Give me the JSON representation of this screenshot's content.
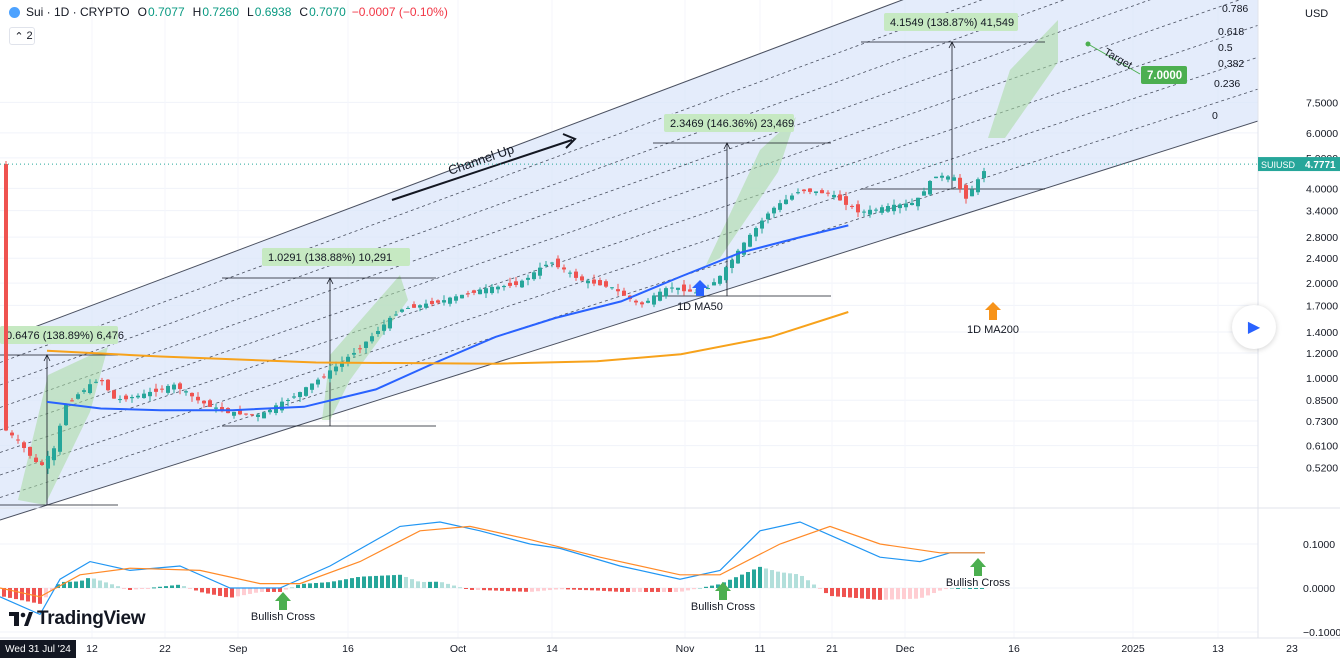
{
  "header": {
    "symbol": "Sui · 1D · CRYPTO",
    "o_label": "O",
    "o_value": "0.7077",
    "h_label": "H",
    "h_value": "0.7260",
    "l_label": "L",
    "l_value": "0.6938",
    "c_label": "C",
    "c_value": "0.7070",
    "change": "−0.0007 (−0.10%)",
    "indicator_count": "2"
  },
  "price_axis": {
    "currency": "USD",
    "labels": [
      "7.5000",
      "6.0000",
      "5.0000",
      "4.0000",
      "3.4000",
      "2.8000",
      "2.4000",
      "2.0000",
      "1.7000",
      "1.4000",
      "1.2000",
      "1.0000",
      "0.8500",
      "0.7300",
      "0.6100",
      "0.5200"
    ],
    "symbol_tag": "SUIUSD",
    "current_price": "4.7771"
  },
  "macd_axis": {
    "labels": [
      "0.1000",
      "0.0000",
      "−0.1000"
    ]
  },
  "time_axis": {
    "current_date": "Wed 31 Jul '24",
    "labels": [
      "12",
      "22",
      "Sep",
      "16",
      "Oct",
      "14",
      "Nov",
      "11",
      "21",
      "Dec",
      "16",
      "2025",
      "13",
      "23"
    ]
  },
  "fib_levels": [
    "0.786",
    "0.618",
    "0.5",
    "0.382",
    "0.236",
    "0"
  ],
  "annotations": {
    "channel": "Channel Up",
    "target_word": "Target",
    "target_value": "7.0000",
    "ma50": "1D MA50",
    "ma200": "1D MA200",
    "bullish_cross": "Bullish Cross",
    "range1": "0.6476 (138.89%) 6,476",
    "range2": "1.0291 (138.88%) 10,291",
    "range3": "2.3469 (146.36%) 23,469",
    "range4": "4.1549 (138.87%) 41,549"
  },
  "brand": "TradingView",
  "colors": {
    "up": "#26a69a",
    "down": "#ef5350",
    "ma50": "#2962ff",
    "ma200": "#f7a21b",
    "channel_fill": "#dbe6fa",
    "macd_line": "#2196f3",
    "signal_line": "#ff8a28",
    "green_label": "#4caf50",
    "blue_arrow": "#2962ff",
    "orange_arrow": "#f7931a"
  },
  "chart_data": {
    "type": "candlestick",
    "title": "Sui · 1D · CRYPTO",
    "x_range": [
      "2024-07-31",
      "2025-01-27"
    ],
    "price_scale": "log",
    "ylim": [
      0.46,
      8.3
    ],
    "series": [
      {
        "name": "1D MA50",
        "type": "line",
        "points": [
          [
            "2024-08-01",
            0.84
          ],
          [
            "2024-08-10",
            0.8
          ],
          [
            "2024-08-20",
            0.79
          ],
          [
            "2024-09-01",
            0.79
          ],
          [
            "2024-09-13",
            0.81
          ],
          [
            "2024-09-25",
            0.92
          ],
          [
            "2024-10-05",
            1.12
          ],
          [
            "2024-10-15",
            1.35
          ],
          [
            "2024-10-25",
            1.55
          ],
          [
            "2024-11-05",
            1.75
          ],
          [
            "2024-11-15",
            2.1
          ],
          [
            "2024-11-25",
            2.5
          ],
          [
            "2024-12-05",
            2.8
          ],
          [
            "2024-12-13",
            3.05
          ]
        ]
      },
      {
        "name": "1D MA200",
        "type": "line",
        "points": [
          [
            "2024-08-01",
            1.22
          ],
          [
            "2024-08-20",
            1.17
          ],
          [
            "2024-09-15",
            1.12
          ],
          [
            "2024-10-15",
            1.11
          ],
          [
            "2024-11-01",
            1.13
          ],
          [
            "2024-11-15",
            1.19
          ],
          [
            "2024-11-30",
            1.35
          ],
          [
            "2024-12-13",
            1.62
          ]
        ]
      }
    ],
    "macd": {
      "ylim": [
        -0.1,
        0.12
      ],
      "histogram_peak": 0.07,
      "histogram_trough": -0.05
    }
  }
}
